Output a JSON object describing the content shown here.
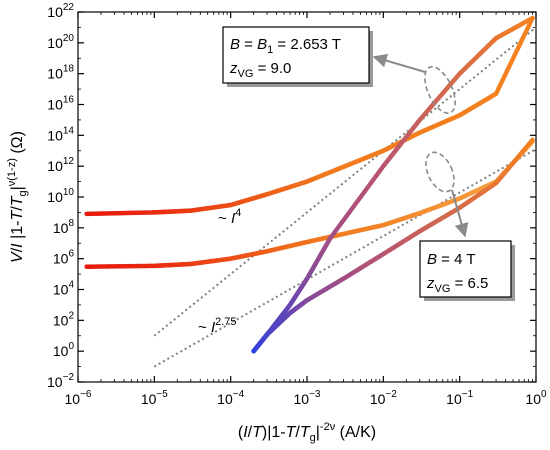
{
  "chart_data": {
    "type": "scatter",
    "x_scale": "log",
    "y_scale": "log",
    "xlim": [
      1e-06,
      1
    ],
    "ylim": [
      0.01,
      1e+22
    ],
    "x_ticks": [
      {
        "value": 1e-06,
        "base": "10",
        "exp": "−6"
      },
      {
        "value": 1e-05,
        "base": "10",
        "exp": "−5"
      },
      {
        "value": 0.0001,
        "base": "10",
        "exp": "−4"
      },
      {
        "value": 0.001,
        "base": "10",
        "exp": "−3"
      },
      {
        "value": 0.01,
        "base": "10",
        "exp": "−2"
      },
      {
        "value": 0.1,
        "base": "10",
        "exp": "−1"
      },
      {
        "value": 1,
        "base": "10",
        "exp": "0"
      }
    ],
    "y_ticks": [
      {
        "value": 0.01,
        "base": "10",
        "exp": "−2"
      },
      {
        "value": 1.0,
        "base": "10",
        "exp": "0"
      },
      {
        "value": 100.0,
        "base": "10",
        "exp": "2"
      },
      {
        "value": 10000.0,
        "base": "10",
        "exp": "4"
      },
      {
        "value": 1000000.0,
        "base": "10",
        "exp": "6"
      },
      {
        "value": 100000000.0,
        "base": "10",
        "exp": "8"
      },
      {
        "value": 10000000000.0,
        "base": "10",
        "exp": "10"
      },
      {
        "value": 1000000000000.0,
        "base": "10",
        "exp": "12"
      },
      {
        "value": 100000000000000.0,
        "base": "10",
        "exp": "14"
      },
      {
        "value": 1e+16,
        "base": "10",
        "exp": "16"
      },
      {
        "value": 1e+18,
        "base": "10",
        "exp": "18"
      },
      {
        "value": 1e+20,
        "base": "10",
        "exp": "20"
      },
      {
        "value": 1e+22,
        "base": "10",
        "exp": "22"
      }
    ],
    "xlabel": {
      "p1": "(",
      "I": "I",
      "p2": "/",
      "T": "T",
      "p3": ")|1-",
      "T2": "T",
      "p4": "/",
      "T3": "T",
      "sub": "g",
      "p5": "|",
      "sup": "-2ν",
      "unit": "  (A/K)"
    },
    "ylabel": {
      "V": "V",
      "p1": "/",
      "I": "I",
      "p2": " |1-",
      "T": "T",
      "p3": "/",
      "T2": "T",
      "sub": "g",
      "p4": "|",
      "sup": "ν(1-z)",
      "unit": "  (Ω)"
    },
    "colors": {
      "red": "#e8190f",
      "orange": "#f58220",
      "light_orange": "#f7a64a",
      "blue": "#2b3fe0",
      "guide": "#808080",
      "arrow": "#8a8a8a"
    },
    "series": [
      {
        "group": "B = 4 T",
        "branch": "upper",
        "points": [
          [
            1.3e-06,
            300000.0
          ],
          [
            1e-05,
            340000.0
          ],
          [
            3e-05,
            450000.0
          ],
          [
            0.0001,
            1000000.0
          ],
          [
            0.0003,
            3000000.0
          ],
          [
            0.001,
            12000000.0
          ],
          [
            0.003,
            40000000.0
          ],
          [
            0.01,
            150000000.0
          ],
          [
            0.03,
            900000000.0
          ],
          [
            0.1,
            8000000000.0
          ],
          [
            0.3,
            100000000000.0
          ],
          [
            0.9,
            40000000000000.0
          ]
        ],
        "colors": [
          "#e8190f",
          "#f07a1e",
          "#f7a64a"
        ]
      },
      {
        "group": "B = 4 T",
        "branch": "lower",
        "points": [
          [
            0.0002,
            1
          ],
          [
            0.0003,
            12
          ],
          [
            0.0006,
            300
          ],
          [
            0.001,
            2000.0
          ],
          [
            0.003,
            50000.0
          ],
          [
            0.01,
            2000000.0
          ],
          [
            0.03,
            60000000.0
          ],
          [
            0.1,
            2000000000.0
          ],
          [
            0.3,
            80000000000.0
          ],
          [
            0.9,
            50000000000000.0
          ]
        ],
        "colors": [
          "#2b3fe0",
          "#b0507a",
          "#f58220"
        ]
      },
      {
        "group": "B = B1 = 2.653 T",
        "branch": "upper",
        "points": [
          [
            1.3e-06,
            800000000.0
          ],
          [
            1e-05,
            1000000000.0
          ],
          [
            3e-05,
            1300000000.0
          ],
          [
            0.0001,
            3000000000.0
          ],
          [
            0.0003,
            15000000000.0
          ],
          [
            0.001,
            100000000000.0
          ],
          [
            0.003,
            900000000000.0
          ],
          [
            0.01,
            10000000000000.0
          ],
          [
            0.03,
            150000000000000.0
          ],
          [
            0.1,
            2000000000000000.0
          ],
          [
            0.3,
            5e+16
          ],
          [
            0.9,
            4e+21
          ]
        ],
        "colors": [
          "#e8190f",
          "#f07a1e",
          "#f58220"
        ]
      },
      {
        "group": "B = B1 = 2.653 T",
        "branch": "lower",
        "points": [
          [
            0.0002,
            1
          ],
          [
            0.0003,
            12
          ],
          [
            0.0006,
            1000.0
          ],
          [
            0.001,
            50000.0
          ],
          [
            0.002,
            20000000.0
          ],
          [
            0.01,
            1000000000000.0
          ],
          [
            0.03,
            1000000000000000.0
          ],
          [
            0.1,
            1e+18
          ],
          [
            0.3,
            2e+20
          ],
          [
            0.9,
            4e+21
          ]
        ],
        "colors": [
          "#2b3fe0",
          "#b0507a",
          "#f58220"
        ]
      }
    ],
    "guide_lines": [
      {
        "label_prefix": "~ ",
        "label_var": "I",
        "label_exp": "4",
        "from": [
          1e-05,
          10.0
        ],
        "to": [
          1,
          1e+21
        ]
      },
      {
        "label_prefix": "~ ",
        "label_var": "I",
        "label_exp": "2.75",
        "from": [
          1e-05,
          0.1
        ],
        "to": [
          1,
          13000000000000.0
        ]
      }
    ],
    "annotations": [
      {
        "line1": {
          "B": "B",
          "eq1": " = ",
          "B1": "B",
          "sub1": "1",
          "eq2": " = 2.653 T"
        },
        "line2": {
          "z": "z",
          "sub": "VG",
          "val": " = 9.0"
        }
      },
      {
        "line1": {
          "B": "B",
          "eq": " = 4 T"
        },
        "line2": {
          "z": "z",
          "sub": "VG",
          "val": " = 6.5"
        }
      }
    ]
  }
}
